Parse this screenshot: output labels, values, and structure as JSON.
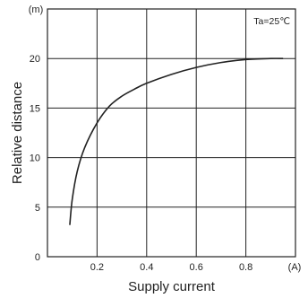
{
  "chart_data": {
    "type": "line",
    "xlabel": "Supply current",
    "ylabel": "Relative distance",
    "x_unit": "(A)",
    "y_unit": "(m)",
    "annotation": "Ta=25℃",
    "xlim": [
      0,
      1.0
    ],
    "ylim": [
      0,
      25
    ],
    "x_ticks": [
      0.2,
      0.4,
      0.6,
      0.8
    ],
    "x_tick_labels": [
      "0.2",
      "0.4",
      "0.6",
      "0.8"
    ],
    "y_ticks": [
      0,
      5,
      10,
      15,
      20
    ],
    "y_tick_labels": [
      "0",
      "5",
      "10",
      "15",
      "20"
    ],
    "grid": true,
    "series": [
      {
        "x": [
          0.09,
          0.1,
          0.12,
          0.15,
          0.2,
          0.25,
          0.3,
          0.35,
          0.4,
          0.5,
          0.6,
          0.7,
          0.8,
          0.9,
          0.95
        ],
        "y": [
          3.2,
          5.8,
          8.6,
          11.0,
          13.5,
          15.2,
          16.2,
          16.9,
          17.5,
          18.4,
          19.1,
          19.6,
          19.9,
          20.0,
          20.0
        ]
      }
    ],
    "colors": {
      "line": "#222222",
      "grid": "#222222",
      "axis": "#222222"
    }
  }
}
